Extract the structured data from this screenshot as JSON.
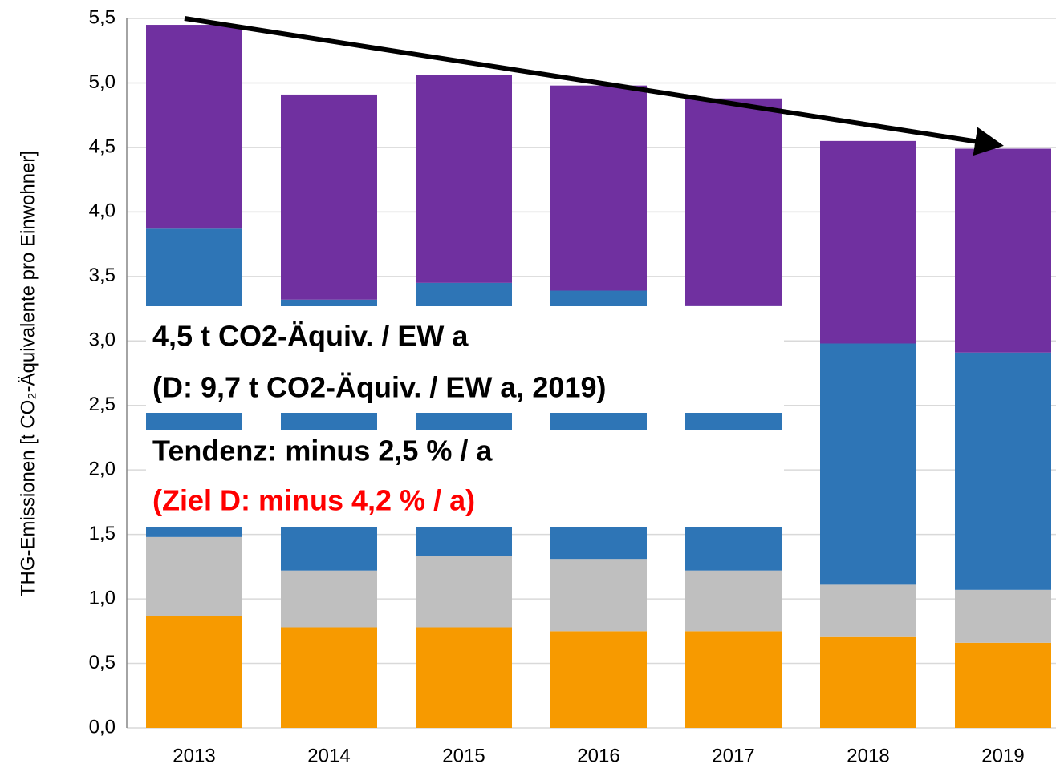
{
  "chart_data": {
    "type": "stacked_bar",
    "y_label": "THG-Emissionen [t CO₂-Äquivalente pro Einwohner]",
    "categories": [
      "2013",
      "2014",
      "2015",
      "2016",
      "2017",
      "2018",
      "2019"
    ],
    "series": [
      {
        "color": "#f79a00",
        "values": [
          0.87,
          0.78,
          0.78,
          0.75,
          0.75,
          0.71,
          0.66
        ]
      },
      {
        "color": "#bfbfbf",
        "values": [
          0.61,
          0.44,
          0.55,
          0.56,
          0.47,
          0.4,
          0.41
        ]
      },
      {
        "color": "#2e75b6",
        "values": [
          2.39,
          2.1,
          2.12,
          2.08,
          2.05,
          1.87,
          1.84
        ]
      },
      {
        "color": "#7030a0",
        "values": [
          1.58,
          1.59,
          1.61,
          1.59,
          1.61,
          1.57,
          1.58
        ]
      }
    ],
    "ylim": [
      0,
      5.5
    ],
    "yticks": [
      {
        "value": 0,
        "label": "0,0"
      },
      {
        "value": 0.5,
        "label": "0,5"
      },
      {
        "value": 1,
        "label": "1,0"
      },
      {
        "value": 1.5,
        "label": "1,5"
      },
      {
        "value": 2,
        "label": "2,0"
      },
      {
        "value": 2.5,
        "label": "2,5"
      },
      {
        "value": 3,
        "label": "3,0"
      },
      {
        "value": 3.5,
        "label": "3,5"
      },
      {
        "value": 4,
        "label": "4,0"
      },
      {
        "value": 4.5,
        "label": "4,5"
      },
      {
        "value": 5,
        "label": "5,0"
      },
      {
        "value": 5.5,
        "label": "5,5"
      }
    ],
    "grid": true,
    "annotations": [
      {
        "text": "4,5 t CO2-Äquiv. / EW a",
        "color": "#000000"
      },
      {
        "text": "(D: 9,7 t CO2-Äquiv. / EW a, 2019)",
        "color": "#000000"
      },
      {
        "text": "Tendenz: minus 2,5 % / a",
        "color": "#000000"
      },
      {
        "text": "(Ziel D: minus 4,2 % / a)",
        "color": "#ff0000"
      }
    ]
  }
}
